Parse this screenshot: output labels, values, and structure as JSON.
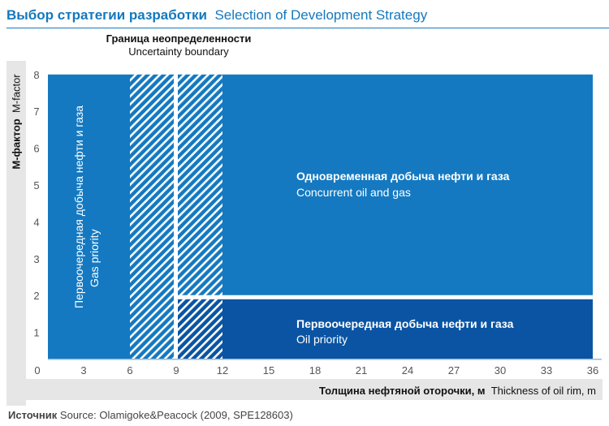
{
  "header": {
    "title_ru": "Выбор стратегии разработки",
    "title_en": "Selection of Development Strategy"
  },
  "annotations": {
    "uncertainty_ru": "Граница неопределенности",
    "uncertainty_en": "Uncertainty boundary"
  },
  "footer": {
    "source_ru": "Источник",
    "source_en": "Source: Olamigoke&Peacock (2009, SPE128603)"
  },
  "colors": {
    "primary_blue": "#1479c1",
    "oil_priority_blue": "#0a54a3",
    "title_blue": "#1478be",
    "axis_band_gray": "#e6e6e6"
  },
  "chart_data": {
    "type": "heatmap",
    "title": "Выбор стратегии разработки  Selection of Development Strategy",
    "xlabel_ru": "Толщина нефтяной оторочки, м",
    "xlabel_en": "Thickness of oil rim, m",
    "ylabel_ru": "М-фактор",
    "ylabel_en": "M-factor",
    "xlim": [
      0,
      36
    ],
    "ylim": [
      0,
      8
    ],
    "x_ticks": [
      "0",
      "3",
      "6",
      "9",
      "12",
      "15",
      "18",
      "21",
      "24",
      "27",
      "30",
      "33",
      "36"
    ],
    "y_ticks": [
      "1",
      "2",
      "3",
      "4",
      "5",
      "6",
      "7",
      "8"
    ],
    "grid": false,
    "uncertainty_boundary_x": 9,
    "uncertainty_band_x": [
      6,
      12
    ],
    "regions": [
      {
        "name": "gas-priority",
        "label_ru": "Первоочередная добыча нефти и газа",
        "label_en": "Gas priority",
        "x_range": [
          0,
          9
        ],
        "y_range": [
          0,
          8
        ]
      },
      {
        "name": "concurrent",
        "label_ru": "Одновременная добыча нефти и газа",
        "label_en": "Concurrent oil and gas",
        "x_range": [
          9,
          36
        ],
        "y_range": [
          1.9,
          8
        ]
      },
      {
        "name": "oil-priority",
        "label_ru": "Первоочередная добыча нефти и газа",
        "label_en": "Oil priority",
        "x_range": [
          9,
          36
        ],
        "y_range": [
          0,
          1.9
        ]
      }
    ]
  }
}
